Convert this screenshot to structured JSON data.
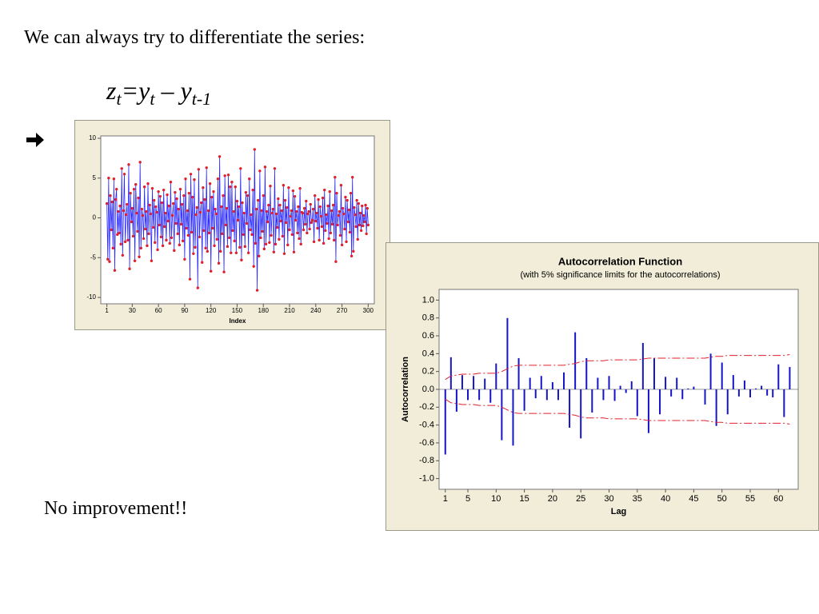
{
  "slide": {
    "heading": "We can always try to differentiate the series:",
    "formula": [
      {
        "text": "z",
        "sub": false
      },
      {
        "text": "t",
        "sub": true
      },
      {
        "text": "=y",
        "sub": false
      },
      {
        "text": "t",
        "sub": true
      },
      {
        "text": " – y",
        "sub": false
      },
      {
        "text": "t-1",
        "sub": true
      }
    ],
    "conclusion": "No improvement!!"
  },
  "chart_data": [
    {
      "type": "line",
      "xlabel": "Index",
      "color": "#2a2aff",
      "marker_color": "#e0202a",
      "xlim": [
        -6,
        307
      ],
      "xticks": [
        1,
        30,
        60,
        90,
        120,
        150,
        180,
        210,
        240,
        270,
        300
      ],
      "ylim": [
        -10.8,
        10.3
      ],
      "yticks": [
        -10,
        -5,
        0,
        5,
        10
      ],
      "x": [
        1,
        2,
        3,
        4,
        5,
        6,
        7,
        8,
        9,
        10,
        11,
        12,
        13,
        14,
        15,
        16,
        17,
        18,
        19,
        20,
        21,
        22,
        23,
        24,
        25,
        26,
        27,
        28,
        29,
        30,
        31,
        32,
        33,
        34,
        35,
        36,
        37,
        38,
        39,
        40,
        41,
        42,
        43,
        44,
        45,
        46,
        47,
        48,
        49,
        50,
        51,
        52,
        53,
        54,
        55,
        56,
        57,
        58,
        59,
        60,
        61,
        62,
        63,
        64,
        65,
        66,
        67,
        68,
        69,
        70,
        71,
        72,
        73,
        74,
        75,
        76,
        77,
        78,
        79,
        80,
        81,
        82,
        83,
        84,
        85,
        86,
        87,
        88,
        89,
        90,
        91,
        92,
        93,
        94,
        95,
        96,
        97,
        98,
        99,
        100,
        101,
        102,
        103,
        104,
        105,
        106,
        107,
        108,
        109,
        110,
        111,
        112,
        113,
        114,
        115,
        116,
        117,
        118,
        119,
        120,
        121,
        122,
        123,
        124,
        125,
        126,
        127,
        128,
        129,
        130,
        131,
        132,
        133,
        134,
        135,
        136,
        137,
        138,
        139,
        140,
        141,
        142,
        143,
        144,
        145,
        146,
        147,
        148,
        149,
        150,
        151,
        152,
        153,
        154,
        155,
        156,
        157,
        158,
        159,
        160,
        161,
        162,
        163,
        164,
        165,
        166,
        167,
        168,
        169,
        170,
        171,
        172,
        173,
        174,
        175,
        176,
        177,
        178,
        179,
        180,
        181,
        182,
        183,
        184,
        185,
        186,
        187,
        188,
        189,
        190,
        191,
        192,
        193,
        194,
        195,
        196,
        197,
        198,
        199,
        200,
        201,
        202,
        203,
        204,
        205,
        206,
        207,
        208,
        209,
        210,
        211,
        212,
        213,
        214,
        215,
        216,
        217,
        218,
        219,
        220,
        221,
        222,
        223,
        224,
        225,
        226,
        227,
        228,
        229,
        230,
        231,
        232,
        233,
        234,
        235,
        236,
        237,
        238,
        239,
        240,
        241,
        242,
        243,
        244,
        245,
        246,
        247,
        248,
        249,
        250,
        251,
        252,
        253,
        254,
        255,
        256,
        257,
        258,
        259,
        260,
        261,
        262,
        263,
        264,
        265,
        266,
        267,
        268,
        269,
        270,
        271,
        272,
        273,
        274,
        275,
        276,
        277,
        278,
        279,
        280,
        281,
        282,
        283,
        284,
        285,
        286,
        287,
        288,
        289,
        290,
        291,
        292,
        293,
        294,
        295,
        296,
        297,
        298,
        299,
        300
      ],
      "values": [
        1.8,
        -5.2,
        5,
        -5.5,
        2.8,
        -1.5,
        2,
        -3.8,
        4.9,
        -6.6,
        2.3,
        3.6,
        -2.1,
        0.8,
        -1.9,
        1.5,
        -3.3,
        6.2,
        -4.7,
        0.9,
        5.5,
        -3,
        0.4,
        1.7,
        -2.8,
        6.7,
        -6.4,
        3.1,
        -0.5,
        1.2,
        -2.3,
        3.6,
        -5.4,
        4.2,
        0.6,
        -1.7,
        2.5,
        -4.9,
        7,
        -3.8,
        1.1,
        0.3,
        -2.6,
        3.9,
        -1.4,
        0.8,
        -3.5,
        4.3,
        -2,
        1.6,
        0.5,
        -5.4,
        3.7,
        -1.2,
        2.2,
        -3.1,
        1.4,
        0.7,
        -4,
        3.3,
        -0.9,
        2.7,
        -2.4,
        1.9,
        -3.5,
        3.5,
        -1.1,
        0.6,
        -2.8,
        2.9,
        -0.4,
        1.5,
        -3.2,
        4.5,
        -2.5,
        0.3,
        1.8,
        -4.1,
        3.2,
        -0.7,
        2.4,
        -2,
        1.1,
        -3.4,
        3.6,
        -0.8,
        1.7,
        -2.9,
        2.8,
        -5.2,
        4.9,
        -1.3,
        0.9,
        -2.2,
        3.1,
        -7.7,
        5.5,
        -1.8,
        2.6,
        -4.5,
        4.8,
        -3.7,
        0.4,
        1.3,
        -8.8,
        6.1,
        -2.4,
        0.7,
        1.9,
        -5.6,
        3.8,
        -1.6,
        2.3,
        -3.8,
        6.3,
        -4.2,
        0.9,
        -1.9,
        4.3,
        -6.7,
        2.6,
        -1.3,
        3.3,
        -3.5,
        1.1,
        0.5,
        -2.7,
        4.9,
        -5.7,
        7.7,
        -4.2,
        1.4,
        -2,
        2.8,
        -6.8,
        5.3,
        -0.9,
        1.2,
        -3.6,
        5.4,
        -2.5,
        3.9,
        -4.4,
        4.5,
        -1.6,
        0.8,
        -2.9,
        3.9,
        -4.4,
        2.1,
        -0.3,
        1.4,
        -3.7,
        6.2,
        -5.3,
        1.9,
        -2.1,
        0.6,
        -3.6,
        3.2,
        -0.7,
        2.8,
        -4.4,
        4.9,
        -1.5,
        0.4,
        -2.1,
        3.5,
        -6.1,
        8.6,
        -3.2,
        1.1,
        -9.1,
        2.2,
        -4.8,
        5.9,
        -2.5,
        0.9,
        -1.7,
        2.8,
        -3.9,
        6.4,
        -3.3,
        0.8,
        -0.5,
        1.6,
        -3.1,
        4,
        -2.2,
        0.6,
        1.1,
        -4.3,
        6.2,
        -3.3,
        0.5,
        -1.2,
        2.4,
        -2.7,
        1.6,
        -0.4,
        0.9,
        -2.3,
        4.1,
        -4.5,
        2.2,
        -0.6,
        1.3,
        -3.4,
        3.8,
        -1.5,
        0.2,
        0.9,
        -2.1,
        3.4,
        -4.3,
        2.7,
        -0.3,
        0.8,
        -1.9,
        1.4,
        -2.6,
        3.7,
        -3.3,
        0.7,
        0.6,
        -1.5,
        1.2,
        -0.8,
        2.1,
        -1.9,
        0.5,
        0.8,
        -1.4,
        1.7,
        -0.6,
        -0.3,
        1.1,
        -3,
        2.8,
        -0.4,
        0.6,
        -1.3,
        2.3,
        -2.8,
        1.4,
        0.2,
        -1.1,
        2.5,
        -3.2,
        3.5,
        -1.6,
        0.4,
        -0.7,
        1.5,
        -2.6,
        3.3,
        -1.9,
        0.9,
        -0.8,
        1.6,
        -2.8,
        5.1,
        -5.5,
        3.1,
        -0.9,
        0.3,
        0.8,
        -2.2,
        4.1,
        -3.4,
        1.2,
        0.5,
        -1.4,
        2.6,
        -3,
        2.2,
        -0.5,
        1,
        -1.8,
        3.1,
        -4.8,
        5.1,
        -4.2,
        1.3,
        0.4,
        -1.1,
        2.2,
        -2.7,
        1.8,
        -0.9,
        0.6,
        -1.6,
        1.5,
        -1,
        0.3,
        -0.5,
        1.6,
        -2,
        1.2,
        -0.9
      ]
    },
    {
      "type": "acf",
      "title": "Autocorrelation Function",
      "subtitle": "(with 5% significance limits for the autocorrelations)",
      "xlabel": "Lag",
      "ylabel": "Autocorrelation",
      "color": "#1414c8",
      "limit_color": "#e0202a",
      "xlim": [
        -0.1,
        63.5
      ],
      "xticks": [
        1,
        5,
        10,
        15,
        20,
        25,
        30,
        35,
        40,
        45,
        50,
        55,
        60
      ],
      "ylim": [
        -1.12,
        1.12
      ],
      "yticks": [
        {
          "value": 1.0,
          "label": "1.0"
        },
        {
          "value": 0.8,
          "label": "0.8"
        },
        {
          "value": 0.6,
          "label": "0.6"
        },
        {
          "value": 0.4,
          "label": "0.4"
        },
        {
          "value": 0.2,
          "label": "0.2"
        },
        {
          "value": 0.0,
          "label": "0.0"
        },
        {
          "value": -0.2,
          "label": "-0.2"
        },
        {
          "value": -0.4,
          "label": "-0.4"
        },
        {
          "value": -0.6,
          "label": "-0.6"
        },
        {
          "value": -0.8,
          "label": "-0.8"
        },
        {
          "value": -1.0,
          "label": "-1.0"
        }
      ],
      "lags": [
        1,
        2,
        3,
        4,
        5,
        6,
        7,
        8,
        9,
        10,
        11,
        12,
        13,
        14,
        15,
        16,
        17,
        18,
        19,
        20,
        21,
        22,
        23,
        24,
        25,
        26,
        27,
        28,
        29,
        30,
        31,
        32,
        33,
        34,
        35,
        36,
        37,
        38,
        39,
        40,
        41,
        42,
        43,
        44,
        45,
        46,
        47,
        48,
        49,
        50,
        51,
        52,
        53,
        54,
        55,
        56,
        57,
        58,
        59,
        60,
        61,
        62
      ],
      "values": [
        -0.73,
        0.36,
        -0.25,
        0.16,
        -0.12,
        0.15,
        -0.12,
        0.12,
        -0.15,
        0.29,
        -0.57,
        0.8,
        -0.63,
        0.35,
        -0.24,
        0.13,
        -0.1,
        0.15,
        -0.12,
        0.08,
        -0.12,
        0.19,
        -0.43,
        0.64,
        -0.55,
        0.35,
        -0.26,
        0.13,
        -0.12,
        0.15,
        -0.13,
        0.04,
        -0.04,
        0.09,
        -0.3,
        0.52,
        -0.49,
        0.35,
        -0.28,
        0.14,
        -0.08,
        0.13,
        -0.11,
        0.01,
        0.03,
        0,
        -0.17,
        0.4,
        -0.41,
        0.3,
        -0.28,
        0.16,
        -0.08,
        0.1,
        -0.09,
        0.01,
        0.04,
        -0.07,
        -0.09,
        0.28,
        -0.31,
        0.25
      ],
      "upper_limit": [
        0.11,
        0.15,
        0.16,
        0.17,
        0.17,
        0.17,
        0.18,
        0.18,
        0.18,
        0.18,
        0.2,
        0.23,
        0.26,
        0.27,
        0.27,
        0.27,
        0.27,
        0.27,
        0.27,
        0.27,
        0.27,
        0.27,
        0.28,
        0.29,
        0.31,
        0.32,
        0.32,
        0.32,
        0.32,
        0.33,
        0.33,
        0.33,
        0.33,
        0.33,
        0.33,
        0.34,
        0.35,
        0.35,
        0.35,
        0.35,
        0.35,
        0.35,
        0.35,
        0.35,
        0.35,
        0.35,
        0.35,
        0.36,
        0.37,
        0.37,
        0.38,
        0.38,
        0.38,
        0.38,
        0.38,
        0.38,
        0.38,
        0.38,
        0.38,
        0.38,
        0.38,
        0.39
      ],
      "lower_limit": [
        -0.11,
        -0.15,
        -0.16,
        -0.17,
        -0.17,
        -0.17,
        -0.18,
        -0.18,
        -0.18,
        -0.18,
        -0.2,
        -0.23,
        -0.26,
        -0.27,
        -0.27,
        -0.27,
        -0.27,
        -0.27,
        -0.27,
        -0.27,
        -0.27,
        -0.27,
        -0.28,
        -0.29,
        -0.31,
        -0.32,
        -0.32,
        -0.32,
        -0.32,
        -0.33,
        -0.33,
        -0.33,
        -0.33,
        -0.33,
        -0.33,
        -0.34,
        -0.35,
        -0.35,
        -0.35,
        -0.35,
        -0.35,
        -0.35,
        -0.35,
        -0.35,
        -0.35,
        -0.35,
        -0.35,
        -0.36,
        -0.37,
        -0.37,
        -0.38,
        -0.38,
        -0.38,
        -0.38,
        -0.38,
        -0.38,
        -0.38,
        -0.38,
        -0.38,
        -0.38,
        -0.38,
        -0.39
      ]
    }
  ]
}
